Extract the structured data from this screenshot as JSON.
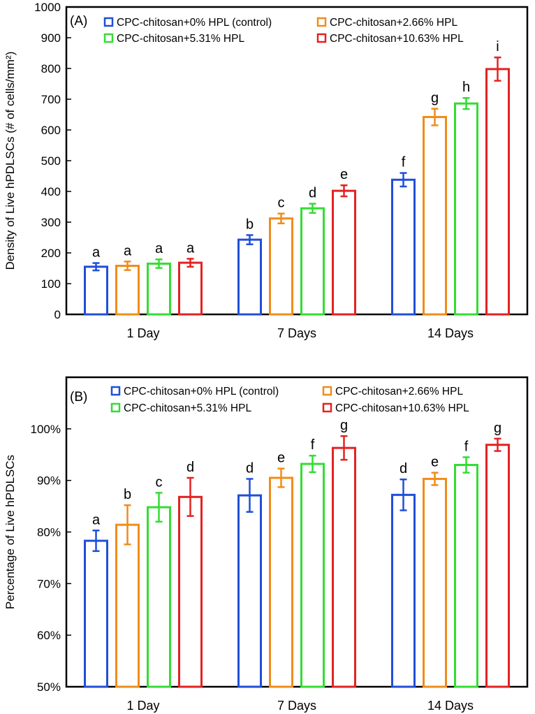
{
  "chart_data": [
    {
      "type": "bar",
      "panel_label": "(A)",
      "title": "",
      "xlabel": "",
      "ylabel": "Density of Live hPDLSCs (# of  cells/mm²)",
      "ylim": [
        0,
        1000
      ],
      "yticks": [
        0,
        100,
        200,
        300,
        400,
        500,
        600,
        700,
        800,
        900,
        1000
      ],
      "ytick_labels": [
        "0",
        "100",
        "200",
        "300",
        "400",
        "500",
        "600",
        "700",
        "800",
        "900",
        "1000"
      ],
      "categories": [
        "1 Day",
        "7 Days",
        "14 Days"
      ],
      "legend_position": "top",
      "series": [
        {
          "name": "CPC-chitosan+0% HPL (control)",
          "color": "#1f4fd8",
          "values": [
            155,
            243,
            438
          ],
          "errors": [
            12,
            15,
            22
          ],
          "letters": [
            "a",
            "b",
            "f"
          ]
        },
        {
          "name": "CPC-chitosan+2.66% HPL",
          "color": "#f08c1a",
          "values": [
            158,
            312,
            642
          ],
          "errors": [
            14,
            16,
            27
          ],
          "letters": [
            "a",
            "c",
            "g"
          ]
        },
        {
          "name": "CPC-chitosan+5.31% HPL",
          "color": "#33dd33",
          "values": [
            165,
            345,
            686
          ],
          "errors": [
            14,
            15,
            18
          ],
          "letters": [
            "a",
            "d",
            "h"
          ]
        },
        {
          "name": "CPC-chitosan+10.63% HPL",
          "color": "#e32222",
          "values": [
            168,
            402,
            798
          ],
          "errors": [
            13,
            18,
            38
          ],
          "letters": [
            "a",
            "e",
            "i"
          ]
        }
      ]
    },
    {
      "type": "bar",
      "panel_label": "(B)",
      "title": "",
      "xlabel": "",
      "ylabel": "Percentage of Live hPDLSCs",
      "ylim": [
        50,
        110
      ],
      "yticks": [
        50,
        60,
        70,
        80,
        90,
        100
      ],
      "ytick_labels": [
        "50%",
        "60%",
        "70%",
        "80%",
        "90%",
        "100%"
      ],
      "categories": [
        "1 Day",
        "7 Days",
        "14 Days"
      ],
      "legend_position": "top",
      "series": [
        {
          "name": "CPC-chitosan+0% HPL (control)",
          "color": "#1f4fd8",
          "values": [
            78.3,
            87.1,
            87.2
          ],
          "errors": [
            2.0,
            3.2,
            3.0
          ],
          "letters": [
            "a",
            "d",
            "d"
          ]
        },
        {
          "name": "CPC-chitosan+2.66% HPL",
          "color": "#f08c1a",
          "values": [
            81.4,
            90.5,
            90.3
          ],
          "errors": [
            3.8,
            1.8,
            1.2
          ],
          "letters": [
            "b",
            "e",
            "e"
          ]
        },
        {
          "name": "CPC-chitosan+5.31% HPL",
          "color": "#33dd33",
          "values": [
            84.8,
            93.2,
            93.0
          ],
          "errors": [
            2.8,
            1.6,
            1.5
          ],
          "letters": [
            "c",
            "f",
            "f"
          ]
        },
        {
          "name": "CPC-chitosan+10.63% HPL",
          "color": "#e32222",
          "values": [
            86.8,
            96.3,
            96.9
          ],
          "errors": [
            3.7,
            2.3,
            1.2
          ],
          "letters": [
            "d",
            "g",
            "g"
          ]
        }
      ]
    }
  ]
}
